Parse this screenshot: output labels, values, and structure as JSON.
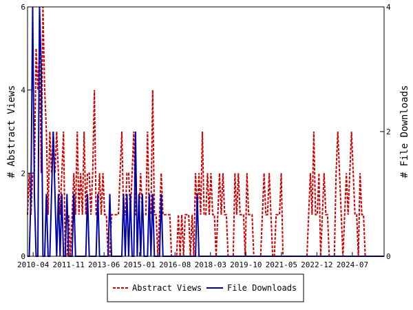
{
  "chart_data": {
    "type": "line",
    "title": "",
    "xlabel": "",
    "ylabel_left": "# Abstract Views",
    "ylabel_right": "# File Downloads",
    "x_start": "2010-01",
    "x_end": "2025-12",
    "x_ticks": [
      "2010-04",
      "2011-11",
      "2013-06",
      "2015-01",
      "2016-08",
      "2018-03",
      "2019-10",
      "2021-05",
      "2022-12",
      "2024-07"
    ],
    "ylim_left": [
      0,
      6
    ],
    "yticks_left": [
      0,
      2,
      4,
      6
    ],
    "ylim_right": [
      0,
      4
    ],
    "yticks_right": [
      0,
      2,
      4
    ],
    "grid": false,
    "legend_position": "bottom-center",
    "series": [
      {
        "name": "Abstract Views",
        "axis": "left",
        "color": "#cc0000",
        "style": "dashed",
        "values": [
          1,
          2,
          1,
          2,
          2,
          5,
          4,
          5,
          2,
          6,
          4,
          3,
          1,
          3,
          2,
          3,
          2,
          3,
          2,
          1,
          2,
          3,
          0,
          0,
          1,
          0,
          1,
          2,
          1,
          3,
          1,
          2,
          1,
          3,
          1,
          2,
          2,
          1,
          2,
          4,
          1,
          1,
          2,
          1,
          2,
          1,
          1,
          0,
          0,
          1,
          1,
          1,
          1,
          1,
          2,
          3,
          1,
          1,
          2,
          2,
          1,
          2,
          3,
          1,
          1,
          1,
          2,
          1,
          1,
          1,
          3,
          1,
          1,
          4,
          1,
          1,
          0,
          1,
          2,
          1,
          1,
          1,
          1,
          1,
          0,
          0,
          0,
          0,
          1,
          0,
          1,
          0,
          1,
          1,
          1,
          0,
          1,
          0,
          2,
          1,
          2,
          1,
          3,
          1,
          1,
          2,
          1,
          2,
          1,
          1,
          0,
          1,
          2,
          1,
          2,
          1,
          1,
          0,
          0,
          0,
          0,
          2,
          1,
          2,
          1,
          1,
          1,
          0,
          2,
          1,
          1,
          1,
          0,
          0,
          0,
          0,
          0,
          1,
          2,
          1,
          1,
          2,
          1,
          0,
          0,
          1,
          1,
          1,
          2,
          0,
          0,
          0,
          0,
          0,
          0,
          0,
          0,
          0,
          0,
          0,
          0,
          0,
          0,
          0,
          1,
          2,
          1,
          3,
          1,
          1,
          2,
          0,
          1,
          2,
          1,
          1,
          0,
          0,
          0,
          0,
          2,
          3,
          2,
          1,
          0,
          1,
          2,
          1,
          2,
          3,
          2,
          1,
          1,
          0,
          2,
          1,
          1,
          0,
          0,
          0,
          0,
          0,
          0,
          0,
          0,
          0,
          0,
          0,
          0
        ]
      },
      {
        "name": "File Downloads",
        "axis": "right",
        "color": "#0000aa",
        "style": "solid",
        "values": [
          0,
          0,
          1,
          4,
          1,
          0,
          0,
          4,
          3,
          0,
          0,
          1,
          0,
          0,
          1,
          2,
          1,
          0,
          1,
          0,
          1,
          0,
          0,
          1,
          0,
          0,
          0,
          1,
          0,
          0,
          0,
          0,
          0,
          0,
          0,
          1,
          0,
          0,
          0,
          0,
          0,
          1,
          0,
          0,
          0,
          0,
          0,
          0,
          1,
          0,
          0,
          0,
          0,
          0,
          0,
          0,
          1,
          0,
          1,
          0,
          1,
          0,
          0,
          2,
          0,
          1,
          0,
          1,
          0,
          0,
          0,
          1,
          0,
          1,
          0,
          0,
          0,
          0,
          1,
          0,
          0,
          0,
          0,
          0,
          0,
          0,
          0,
          0,
          0,
          0,
          0,
          0,
          0,
          0,
          0,
          0,
          0,
          0,
          0,
          1,
          0,
          0,
          0,
          0,
          0,
          0,
          0,
          0,
          0,
          0,
          0,
          0,
          0,
          0,
          0,
          0,
          0,
          0,
          0,
          0,
          0,
          0,
          0,
          0,
          0,
          0,
          0,
          0,
          0,
          0,
          0,
          0,
          0,
          0,
          0,
          0,
          0,
          0,
          0,
          0,
          0,
          0,
          0,
          0,
          0,
          0,
          0,
          0,
          0,
          0,
          0,
          0,
          0,
          0,
          0,
          0,
          0,
          0,
          0,
          0,
          0,
          0,
          0,
          0,
          0,
          0,
          0,
          0,
          0,
          0,
          0,
          0,
          0,
          0,
          0,
          0,
          0,
          0,
          0,
          0,
          0,
          0,
          0,
          0,
          0,
          0,
          0,
          0,
          0,
          0,
          0,
          0,
          0,
          0,
          0,
          0,
          0,
          0,
          0,
          0,
          0,
          0,
          0,
          0,
          0,
          0,
          0,
          0,
          0
        ]
      }
    ]
  }
}
